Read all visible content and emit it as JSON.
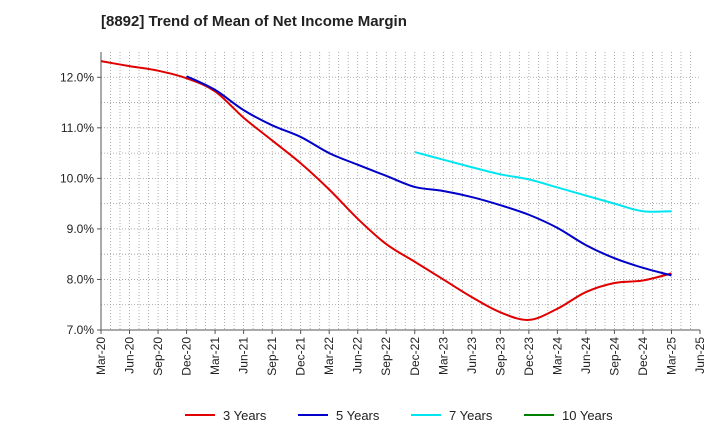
{
  "chart_data": {
    "type": "line",
    "title": "[8892]  Trend of Mean of Net Income Margin",
    "xlabel": "",
    "ylabel": "",
    "ylim": [
      7.0,
      12.5
    ],
    "yticks": [
      "7.0%",
      "8.0%",
      "9.0%",
      "10.0%",
      "11.0%",
      "12.0%"
    ],
    "ytick_values": [
      7,
      8,
      9,
      10,
      11,
      12
    ],
    "categories": [
      "Mar-20",
      "Jun-20",
      "Sep-20",
      "Dec-20",
      "Mar-21",
      "Jun-21",
      "Sep-21",
      "Dec-21",
      "Mar-22",
      "Jun-22",
      "Sep-22",
      "Dec-22",
      "Mar-23",
      "Jun-23",
      "Sep-23",
      "Dec-23",
      "Mar-24",
      "Jun-24",
      "Sep-24",
      "Dec-24",
      "Mar-25",
      "Jun-25"
    ],
    "grid": true,
    "legend_position": "bottom",
    "series": [
      {
        "name": "3 Years",
        "color": "#e00000",
        "values": [
          12.32,
          12.22,
          12.13,
          11.98,
          11.72,
          11.2,
          10.75,
          10.3,
          9.78,
          9.2,
          8.7,
          8.35,
          8.0,
          7.65,
          7.35,
          7.2,
          7.42,
          7.75,
          7.93,
          7.98,
          8.12,
          null
        ]
      },
      {
        "name": "5 Years",
        "color": "#0000c8",
        "values": [
          null,
          null,
          null,
          12.02,
          11.75,
          11.35,
          11.05,
          10.82,
          10.5,
          10.27,
          10.05,
          9.83,
          9.75,
          9.63,
          9.47,
          9.28,
          9.02,
          8.68,
          8.42,
          8.23,
          8.08,
          null
        ]
      },
      {
        "name": "7 Years",
        "color": "#00e5ef",
        "values": [
          null,
          null,
          null,
          null,
          null,
          null,
          null,
          null,
          null,
          null,
          null,
          10.52,
          10.37,
          10.22,
          10.08,
          9.98,
          9.82,
          9.66,
          9.5,
          9.35,
          9.35,
          null
        ]
      },
      {
        "name": "10 Years",
        "color": "#008000",
        "values": [
          null,
          null,
          null,
          null,
          null,
          null,
          null,
          null,
          null,
          null,
          null,
          null,
          null,
          null,
          null,
          null,
          null,
          null,
          null,
          null,
          null,
          null
        ]
      }
    ]
  }
}
